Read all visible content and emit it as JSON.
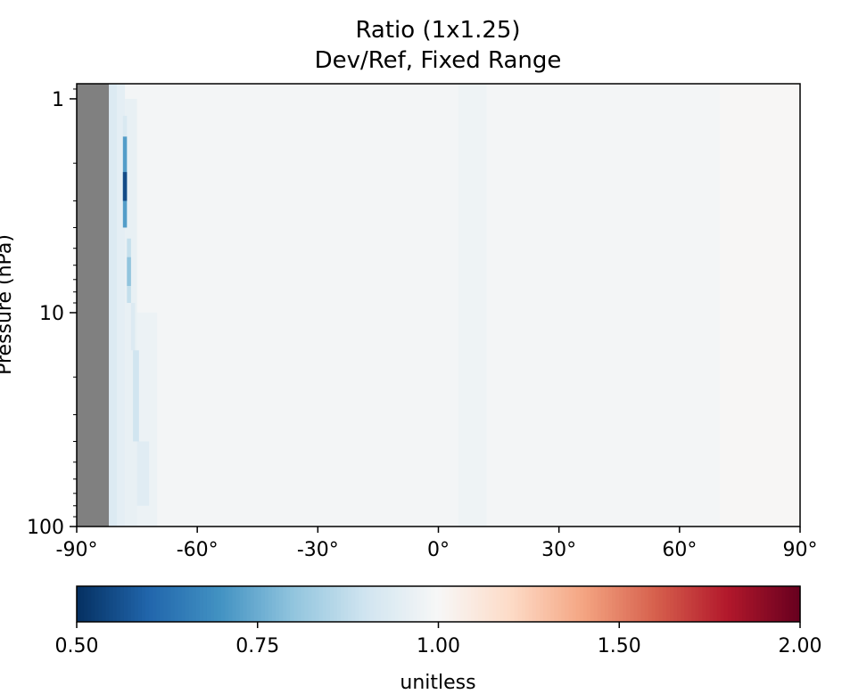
{
  "chart_data": {
    "type": "heatmap",
    "title": "Ratio (1x1.25)",
    "subtitle": "Dev/Ref, Fixed Range",
    "xlabel": "",
    "ylabel": "Pressure (hPa)",
    "xlim": [
      -90,
      90
    ],
    "ylim": [
      100,
      0.85
    ],
    "y_scale": "log",
    "x_ticks": [
      -90,
      -60,
      -30,
      0,
      30,
      60,
      90
    ],
    "x_tick_labels": [
      "-90°",
      "-60°",
      "-30°",
      "0°",
      "30°",
      "60°",
      "90°"
    ],
    "y_ticks": [
      1,
      10,
      100
    ],
    "y_tick_labels": [
      "1",
      "10",
      "100"
    ],
    "colormap": "RdBu_r",
    "color_range": [
      0.5,
      2.0
    ],
    "missing_color": "#808080",
    "missing_region": {
      "lat_min": -90,
      "lat_max": -82
    },
    "colorbar": {
      "label": "unitless",
      "orientation": "horizontal",
      "placement": "bottom",
      "ticks": [
        0.5,
        0.75,
        1.0,
        1.5,
        2.0
      ],
      "tick_labels": [
        "0.50",
        "0.75",
        "1.00",
        "1.50",
        "2.00"
      ]
    },
    "background_value": 0.99,
    "features": [
      {
        "lat_min": -82,
        "lat_max": -80,
        "p_top": 0.85,
        "p_bottom": 100,
        "value": 0.93
      },
      {
        "lat_min": -80,
        "lat_max": -78,
        "p_top": 0.85,
        "p_bottom": 100,
        "value": 0.95
      },
      {
        "lat_min": -78,
        "lat_max": -75,
        "p_top": 1.0,
        "p_bottom": 100,
        "value": 0.96
      },
      {
        "lat_min": -75,
        "lat_max": -70,
        "p_top": 10,
        "p_bottom": 100,
        "value": 0.97
      },
      {
        "lat_min": -78.5,
        "lat_max": -77.5,
        "p_top": 1.5,
        "p_bottom": 4.0,
        "value": 0.72
      },
      {
        "lat_min": -78.5,
        "lat_max": -77.5,
        "p_top": 2.2,
        "p_bottom": 3.0,
        "value": 0.55
      },
      {
        "lat_min": -78.5,
        "lat_max": -77.5,
        "p_top": 1.2,
        "p_bottom": 1.5,
        "value": 0.92
      },
      {
        "lat_min": -77.5,
        "lat_max": -76.5,
        "p_top": 4.5,
        "p_bottom": 9.0,
        "value": 0.88
      },
      {
        "lat_min": -77.5,
        "lat_max": -76.5,
        "p_top": 5.5,
        "p_bottom": 7.5,
        "value": 0.8
      },
      {
        "lat_min": -76.5,
        "lat_max": -75.5,
        "p_top": 9.0,
        "p_bottom": 15,
        "value": 0.93
      },
      {
        "lat_min": -76,
        "lat_max": -74.5,
        "p_top": 15,
        "p_bottom": 40,
        "value": 0.9
      },
      {
        "lat_min": -75,
        "lat_max": -72,
        "p_top": 40,
        "p_bottom": 80,
        "value": 0.94
      },
      {
        "lat_min": 5,
        "lat_max": 12,
        "p_top": 0.85,
        "p_bottom": 100,
        "value": 0.975
      },
      {
        "lat_min": 70,
        "lat_max": 90,
        "p_top": 0.85,
        "p_bottom": 100,
        "value": 1.01
      }
    ]
  }
}
